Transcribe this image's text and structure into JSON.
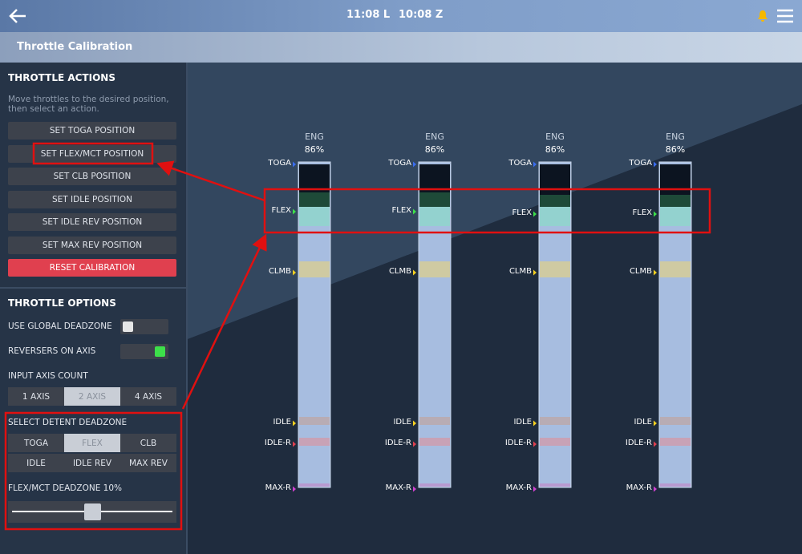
{
  "header": {
    "time_local": "11:08 L",
    "time_zulu": "10:08 Z",
    "title": "Throttle Calibration"
  },
  "actions": {
    "title": "THROTTLE ACTIONS",
    "instructions": [
      "Move throttles to the desired position,",
      "then select an action."
    ],
    "buttons": [
      "SET TOGA POSITION",
      "SET FLEX/MCT POSITION",
      "SET CLB POSITION",
      "SET IDLE POSITION",
      "SET IDLE REV POSITION",
      "SET MAX REV POSITION"
    ],
    "reset": "RESET CALIBRATION"
  },
  "options": {
    "title": "THROTTLE OPTIONS",
    "toggles": [
      {
        "label": "USE GLOBAL DEADZONE",
        "on": false
      },
      {
        "label": "REVERSERS ON AXIS",
        "on": true
      }
    ],
    "axis_count": {
      "label": "INPUT AXIS COUNT",
      "choices": [
        "1 AXIS",
        "2 AXIS",
        "4 AXIS"
      ],
      "selected": 1
    },
    "detent": {
      "label": "SELECT DETENT DEADZONE",
      "choices": [
        "TOGA",
        "FLEX",
        "CLB",
        "IDLE",
        "IDLE REV",
        "MAX REV"
      ],
      "selected": 1
    },
    "deadzone": {
      "label": "FLEX/MCT DEADZONE 10%"
    }
  },
  "engines": [
    {
      "label": "ENG",
      "percent": "86%"
    },
    {
      "label": "ENG",
      "percent": "86%"
    },
    {
      "label": "ENG",
      "percent": "86%"
    },
    {
      "label": "ENG",
      "percent": "86%"
    }
  ],
  "detents": [
    "TOGA",
    "FLEX",
    "CLMB",
    "IDLE",
    "IDLE-R",
    "MAX-R"
  ]
}
